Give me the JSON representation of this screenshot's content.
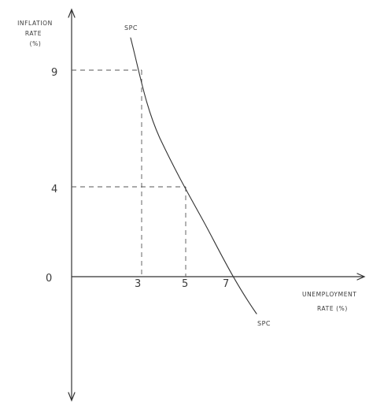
{
  "diagram": {
    "y_axis_label": [
      "INFLATION",
      "RATE",
      "(%)"
    ],
    "x_axis_label": [
      "UNEMPLOYMENT",
      "RATE (%)"
    ],
    "curve_label_top": "SPC",
    "curve_label_bottom": "SPC",
    "origin_label": "0",
    "y_ticks": [
      "9",
      "4"
    ],
    "x_ticks": [
      "3",
      "5",
      "7"
    ]
  },
  "chart_data": {
    "type": "line",
    "xlabel": "UNEMPLOYMENT RATE (%)",
    "ylabel": "INFLATION RATE (%)",
    "series": [
      {
        "name": "SPC",
        "x": [
          3,
          5,
          7
        ],
        "y": [
          9,
          4,
          0
        ]
      }
    ],
    "marked_points": [
      {
        "x": 3,
        "y": 9
      },
      {
        "x": 5,
        "y": 4
      },
      {
        "x": 7,
        "y": 0
      }
    ],
    "x_ticks": [
      3,
      5,
      7
    ],
    "y_ticks": [
      0,
      4,
      9
    ]
  }
}
